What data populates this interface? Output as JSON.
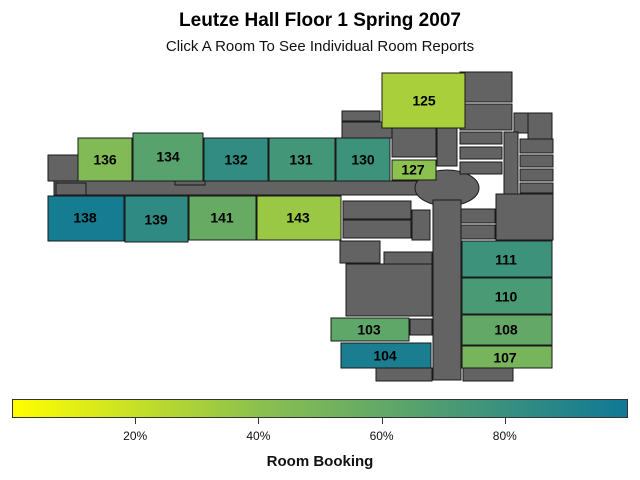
{
  "header": {
    "title": "Leutze Hall Floor 1 Spring 2007",
    "subtitle": "Click A Room To See Individual Room Reports"
  },
  "colors": {
    "building": "#636363",
    "outline": "#1a1a1a",
    "scale_low": "#ffff00",
    "scale_mid": "#8cc04f",
    "scale_high": "#107896"
  },
  "rooms": [
    {
      "id": "125",
      "label": "125",
      "booking_pct": 30
    },
    {
      "id": "136",
      "label": "136",
      "booking_pct": 45
    },
    {
      "id": "134",
      "label": "134",
      "booking_pct": 65
    },
    {
      "id": "132",
      "label": "132",
      "booking_pct": 83
    },
    {
      "id": "131",
      "label": "131",
      "booking_pct": 75
    },
    {
      "id": "130",
      "label": "130",
      "booking_pct": 78
    },
    {
      "id": "127",
      "label": "127",
      "booking_pct": 40
    },
    {
      "id": "138",
      "label": "138",
      "booking_pct": 97
    },
    {
      "id": "139",
      "label": "139",
      "booking_pct": 85
    },
    {
      "id": "141",
      "label": "141",
      "booking_pct": 58
    },
    {
      "id": "143",
      "label": "143",
      "booking_pct": 35
    },
    {
      "id": "111",
      "label": "111",
      "booking_pct": 78
    },
    {
      "id": "110",
      "label": "110",
      "booking_pct": 72
    },
    {
      "id": "108",
      "label": "108",
      "booking_pct": 60
    },
    {
      "id": "103",
      "label": "103",
      "booking_pct": 62
    },
    {
      "id": "104",
      "label": "104",
      "booking_pct": 95
    },
    {
      "id": "107",
      "label": "107",
      "booking_pct": 50
    }
  ],
  "legend": {
    "title": "Room Booking",
    "ticks": [
      "20%",
      "40%",
      "60%",
      "80%"
    ],
    "tick_values": [
      20,
      40,
      60,
      80
    ],
    "range": [
      0,
      100
    ]
  }
}
